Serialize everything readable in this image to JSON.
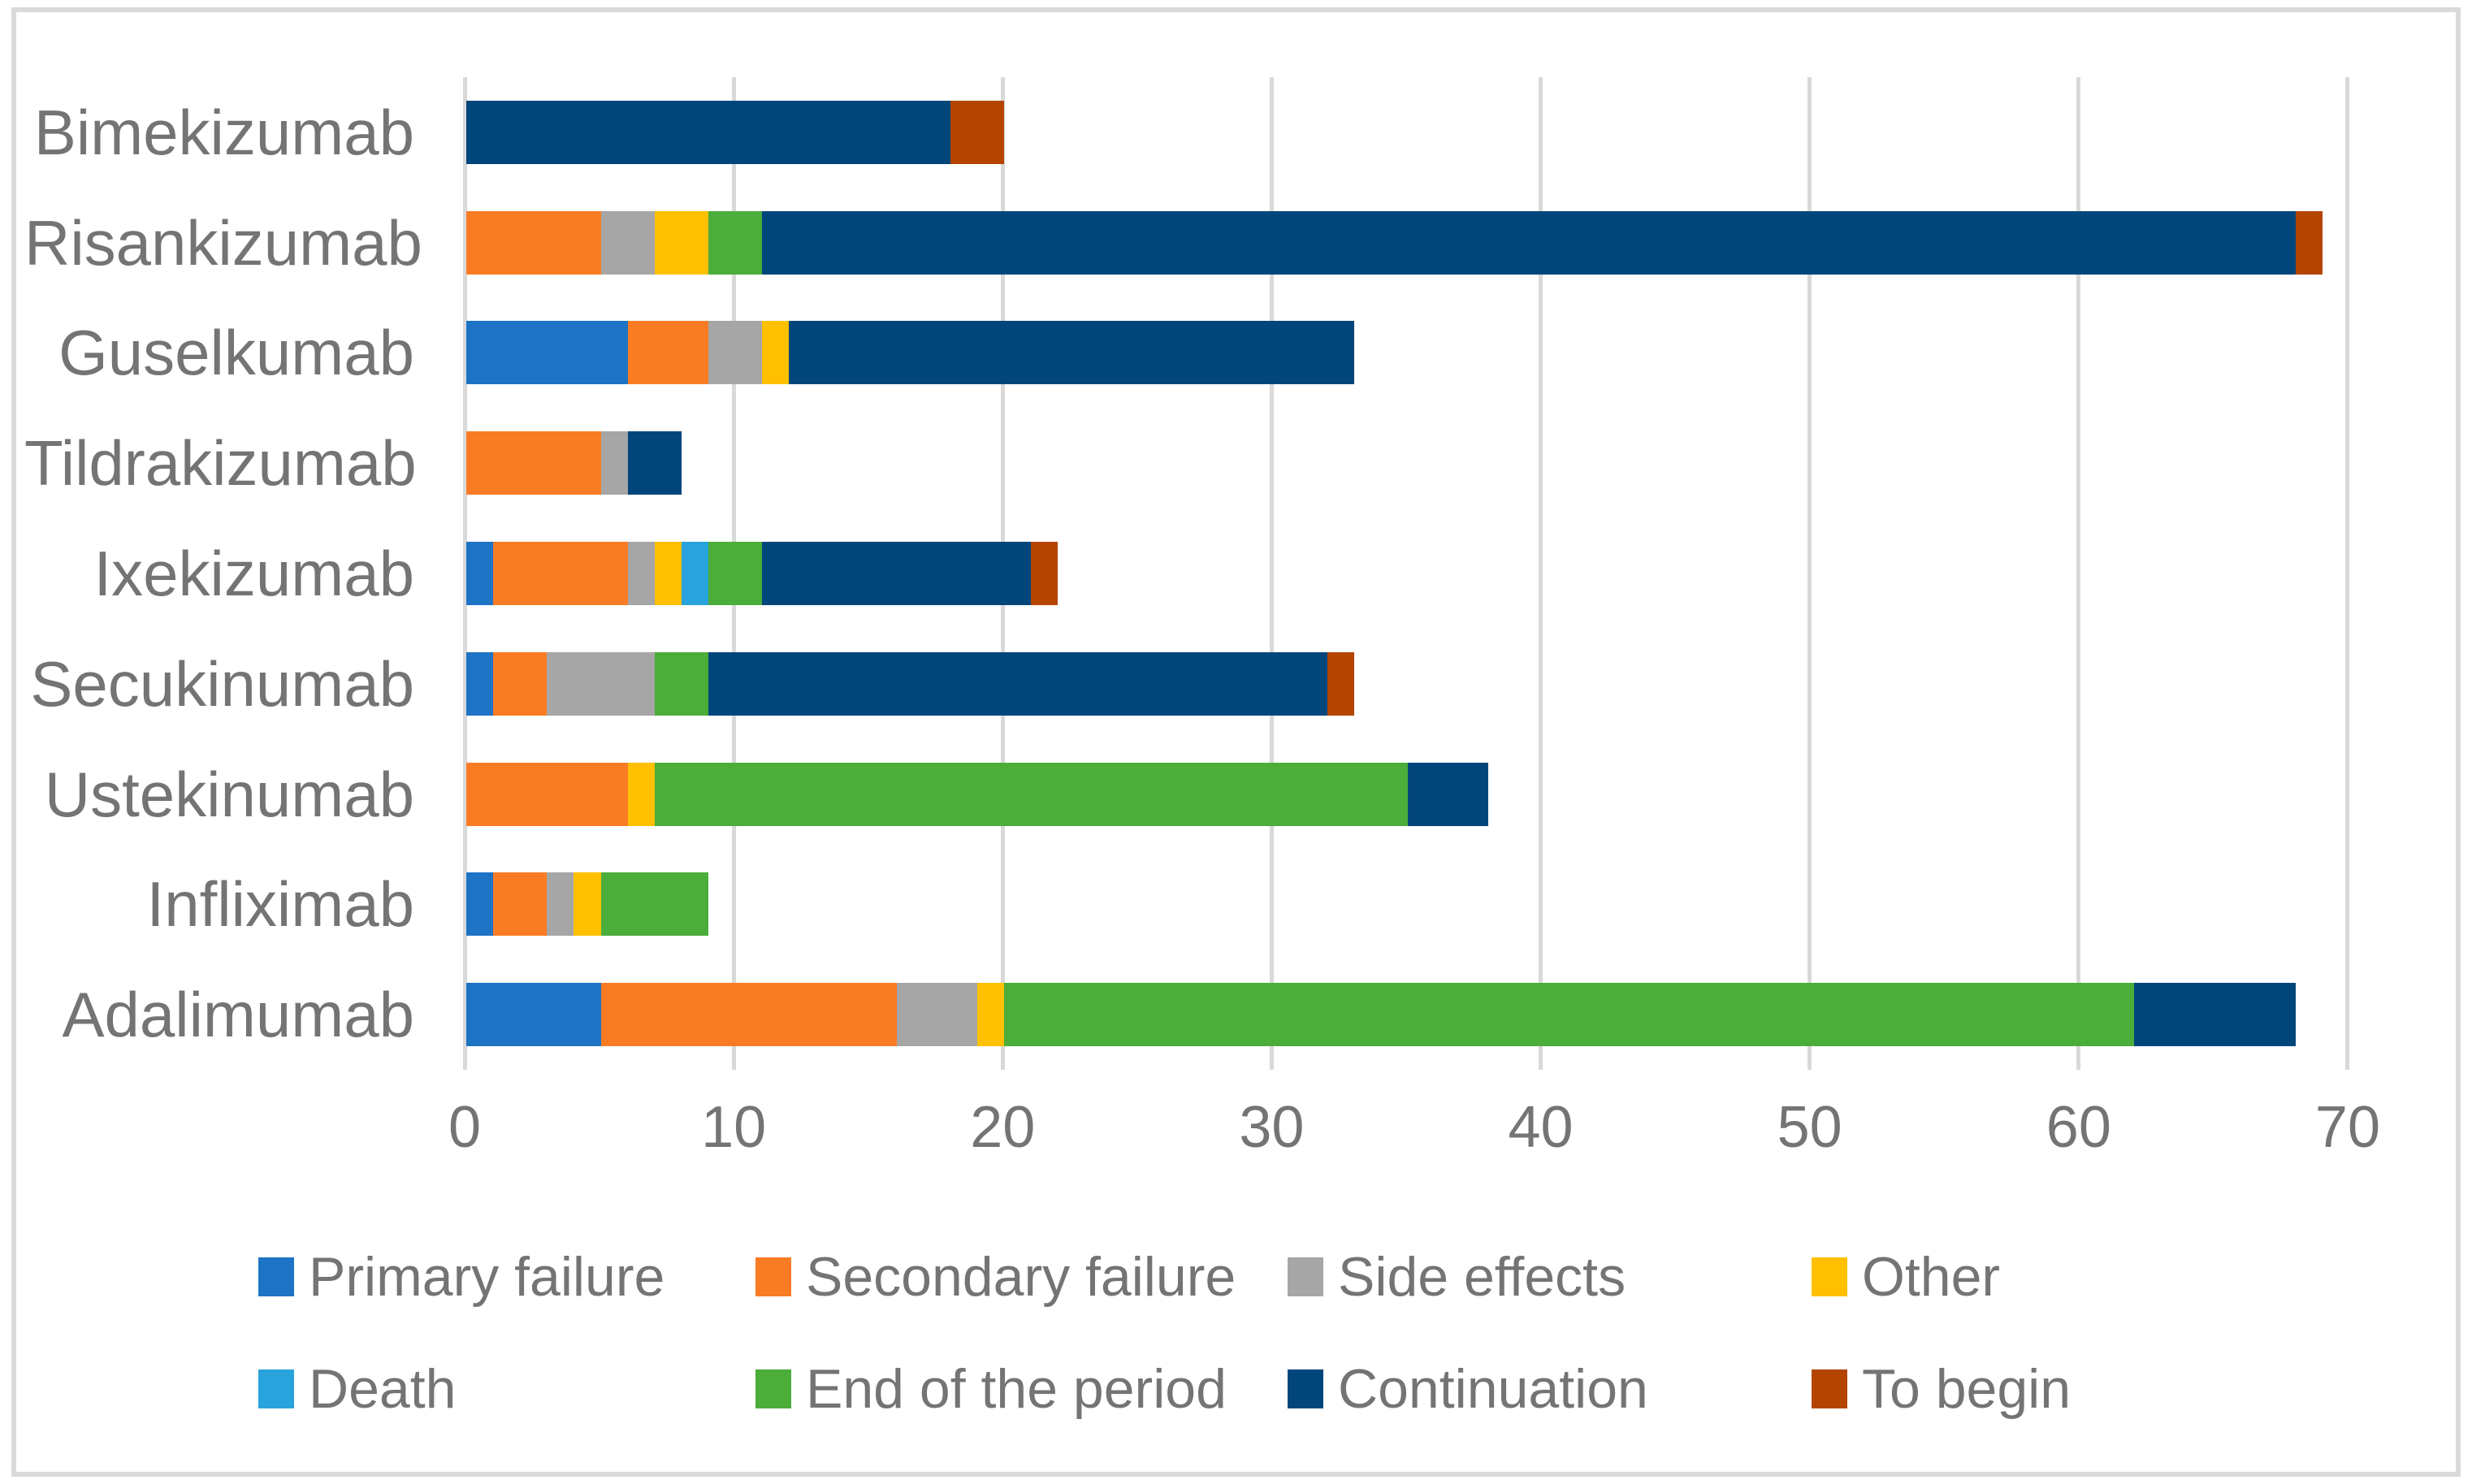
{
  "chart_data": {
    "type": "bar",
    "orientation": "horizontal-stacked",
    "title": "",
    "xlabel": "",
    "ylabel": "",
    "categories": [
      "Bimekizumab",
      "Risankizumab",
      "Guselkumab",
      "Tildrakizumab",
      "Ixekizumab",
      "Secukinumab",
      "Ustekinumab",
      "Infliximab",
      "Adalimumab"
    ],
    "series": [
      {
        "name": "Primary failure",
        "color": "#1d73c4",
        "values": [
          0,
          0,
          6,
          0,
          1,
          1,
          0,
          1,
          5
        ]
      },
      {
        "name": "Secondary failure",
        "color": "#f97c25",
        "values": [
          0,
          5,
          3,
          5,
          5,
          2,
          6,
          2,
          11
        ]
      },
      {
        "name": "Side effects",
        "color": "#a6a6a6",
        "values": [
          0,
          2,
          2,
          1,
          1,
          4,
          0,
          1,
          3
        ]
      },
      {
        "name": "Other",
        "color": "#ffc000",
        "values": [
          0,
          2,
          1,
          0,
          1,
          0,
          1,
          1,
          1
        ]
      },
      {
        "name": "Death",
        "color": "#29a3dc",
        "values": [
          0,
          0,
          0,
          0,
          1,
          0,
          0,
          0,
          0
        ]
      },
      {
        "name": "End of the period",
        "color": "#4bad3a",
        "values": [
          0,
          2,
          0,
          0,
          2,
          2,
          28,
          4,
          42
        ]
      },
      {
        "name": "Continuation",
        "color": "#00467b",
        "values": [
          18,
          57,
          21,
          2,
          10,
          23,
          3,
          0,
          6
        ]
      },
      {
        "name": "To begin",
        "color": "#b34500",
        "values": [
          2,
          1,
          0,
          0,
          1,
          1,
          0,
          0,
          0
        ]
      }
    ],
    "category_totals": [
      20,
      69,
      33,
      8,
      22,
      33,
      38,
      9,
      68
    ],
    "xlim": [
      0,
      70
    ],
    "x_ticks": [
      "0",
      "10",
      "20",
      "30",
      "40",
      "50",
      "60",
      "70"
    ],
    "grid": "vertical",
    "legend_position": "bottom",
    "legend_rows": [
      [
        "Primary failure",
        "Secondary failure",
        "Side effects",
        "Other"
      ],
      [
        "Death",
        "End of the period",
        "Continuation",
        "To begin"
      ]
    ]
  },
  "styles": {
    "gridline_color": "#d9d9d9",
    "frame_color": "#d9d9d9",
    "text_color": "#747474",
    "background": "#ffffff"
  }
}
